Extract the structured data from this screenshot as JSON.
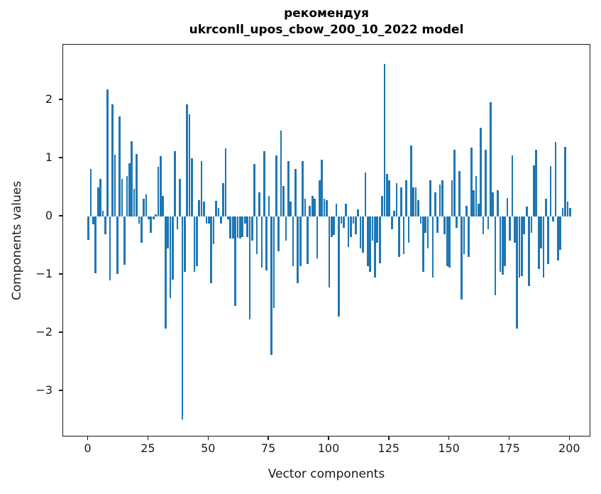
{
  "chart_data": {
    "type": "bar",
    "title_line1": "рекомендуя",
    "title_line2": "ukrconll_upos_cbow_200_10_2022 model",
    "xlabel": "Vector components",
    "ylabel": "Components values",
    "x_start": 0,
    "x_step": 1,
    "n_points": 201,
    "x_ticks": [
      0,
      25,
      50,
      75,
      100,
      125,
      150,
      175,
      200
    ],
    "y_ticks": [
      2,
      1,
      0,
      -1,
      -2,
      -3
    ],
    "xlim": [
      -10.5,
      208.8
    ],
    "ylim": [
      -3.8,
      2.95
    ],
    "grid": false,
    "legend": null,
    "bar_color": "#1f77b4",
    "background": "#ffffff",
    "text_color": "#1a1a1a",
    "values": [
      -0.4,
      0.82,
      -0.13,
      -0.97,
      0.5,
      0.65,
      0.1,
      -0.3,
      2.18,
      -1.1,
      1.93,
      1.06,
      -0.99,
      1.72,
      0.64,
      -0.83,
      0.7,
      0.92,
      1.29,
      0.48,
      1.07,
      -0.12,
      -0.45,
      0.3,
      0.38,
      -0.05,
      -0.28,
      -0.05,
      0.04,
      0.85,
      1.03,
      0.35,
      -1.92,
      -0.55,
      -1.4,
      -1.09,
      1.12,
      -0.22,
      0.65,
      -3.49,
      -0.95,
      1.92,
      1.75,
      1.0,
      -0.95,
      -0.85,
      0.28,
      0.95,
      0.25,
      -0.12,
      -0.12,
      -1.15,
      -0.48,
      0.27,
      0.15,
      -0.12,
      0.57,
      1.17,
      -0.05,
      -0.38,
      -0.38,
      -1.54,
      -0.37,
      -0.38,
      -0.35,
      -0.12,
      -0.35,
      -1.77,
      -0.42,
      0.9,
      -0.65,
      0.42,
      -0.88,
      1.12,
      -0.92,
      0.35,
      -2.38,
      -1.57,
      1.05,
      -0.6,
      1.48,
      0.52,
      -0.42,
      0.95,
      0.25,
      -0.85,
      0.82,
      -1.15,
      -0.85,
      0.95,
      0.3,
      -0.82,
      0.18,
      0.35,
      0.3,
      -0.72,
      0.62,
      0.97,
      0.3,
      0.28,
      -1.22,
      -0.35,
      -0.32,
      0.22,
      -1.72,
      -0.12,
      -0.2,
      0.22,
      -0.52,
      -0.35,
      -0.12,
      -0.3,
      0.12,
      -0.55,
      -0.62,
      0.76,
      -0.85,
      -0.95,
      -0.42,
      -1.05,
      -0.45,
      -0.8,
      0.35,
      2.62,
      0.73,
      0.62,
      -0.22,
      0.1,
      0.57,
      -0.7,
      0.5,
      -0.65,
      0.62,
      -0.45,
      1.22,
      0.5,
      0.5,
      0.28,
      -0.12,
      -0.95,
      -0.28,
      -0.55,
      0.62,
      -1.05,
      0.42,
      -0.28,
      0.55,
      0.62,
      -0.3,
      -0.85,
      -0.88,
      0.62,
      1.15,
      -0.2,
      0.78,
      -1.42,
      -0.65,
      0.18,
      -0.7,
      1.18,
      0.45,
      0.7,
      0.22,
      1.52,
      -0.3,
      1.15,
      -0.22,
      1.96,
      0.42,
      -1.35,
      0.45,
      -0.95,
      -1.0,
      -0.85,
      0.32,
      -0.42,
      1.05,
      -0.45,
      -1.92,
      -1.05,
      -1.02,
      -0.3,
      0.17,
      -1.2,
      -0.28,
      0.88,
      1.15,
      -0.9,
      -0.55,
      -1.05,
      0.3,
      -0.82,
      0.86,
      -0.08,
      1.28,
      -0.75,
      -0.57,
      0.15,
      1.19,
      0.25,
      0.15
    ]
  }
}
